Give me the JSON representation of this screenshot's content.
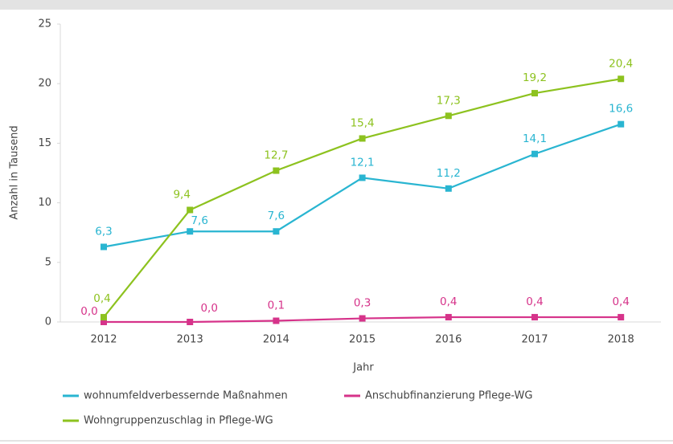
{
  "chart_data": {
    "type": "line",
    "y_label": "Anzahl in Tausend",
    "x_label": "Jahr",
    "categories": [
      "2012",
      "2013",
      "2014",
      "2015",
      "2016",
      "2017",
      "2018"
    ],
    "series": [
      {
        "name": "wohnumfeldverbessernde Maßnahmen",
        "color": "#29b5d1",
        "values": [
          6.3,
          7.6,
          7.6,
          12.1,
          11.2,
          14.1,
          16.6
        ],
        "value_labels": [
          "6,3",
          "7,6",
          "7,6",
          "12,1",
          "11,2",
          "14,1",
          "16,6"
        ]
      },
      {
        "name": "Anschubfinanzierung Pflege-WG",
        "color": "#d6338a",
        "values": [
          0.0,
          0.0,
          0.1,
          0.3,
          0.4,
          0.4,
          0.4
        ],
        "value_labels": [
          "0,0",
          "0,0",
          "0,1",
          "0,3",
          "0,4",
          "0,4",
          "0,4"
        ]
      },
      {
        "name": "Wohngruppenzuschlag in Pflege-WG",
        "color": "#8dc21f",
        "values": [
          0.4,
          9.4,
          12.7,
          15.4,
          17.3,
          19.2,
          20.4
        ],
        "value_labels": [
          "0,4",
          "9,4",
          "12,7",
          "15,4",
          "17,3",
          "19,2",
          "20,4"
        ]
      }
    ],
    "ylim": [
      0,
      25
    ],
    "yticks": [
      0,
      5,
      10,
      15,
      20,
      25
    ]
  }
}
